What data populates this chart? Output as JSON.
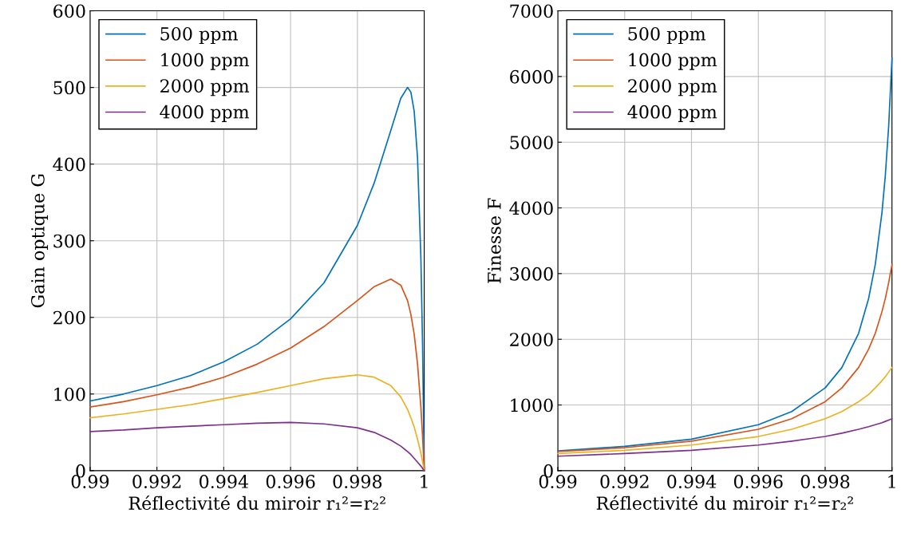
{
  "chart_data": [
    {
      "type": "line",
      "ylabel": "Gain optique G",
      "xlabel": "Réflectivité du miroir r₁²=r₂²",
      "xlim": [
        0.99,
        1
      ],
      "ylim": [
        0,
        600
      ],
      "xticks": [
        0.99,
        0.992,
        0.994,
        0.996,
        0.998,
        1
      ],
      "yticks": [
        0,
        100,
        200,
        300,
        400,
        500,
        600
      ],
      "grid": true,
      "legend": "top left",
      "x": [
        0.99,
        0.991,
        0.992,
        0.993,
        0.994,
        0.995,
        0.996,
        0.997,
        0.998,
        0.9985,
        0.999,
        0.9993,
        0.9995,
        0.9996,
        0.9997,
        0.9998,
        0.9999,
        0.99995,
        1
      ],
      "series": [
        {
          "name": "500 ppm",
          "color": "#0072bd",
          "values": [
            91,
            100,
            111,
            124,
            142,
            165,
            198,
            245,
            320,
            375,
            444,
            486,
            500,
            494,
            469,
            408,
            278,
            165,
            0
          ]
        },
        {
          "name": "1000 ppm",
          "color": "#d95319",
          "values": [
            83,
            90,
            99,
            109,
            122,
            139,
            160,
            188,
            222,
            240,
            250,
            242,
            222,
            204,
            178,
            139,
            83,
            45,
            0
          ]
        },
        {
          "name": "2000 ppm",
          "color": "#edb120",
          "values": [
            69,
            74,
            80,
            86,
            94,
            102,
            111,
            120,
            125,
            122,
            111,
            96,
            80,
            69,
            57,
            41,
            23,
            12,
            0
          ]
        },
        {
          "name": "4000 ppm",
          "color": "#7e2f8e",
          "values": [
            51,
            53,
            56,
            58,
            60,
            62,
            63,
            61,
            56,
            50,
            40,
            32,
            25,
            21,
            16,
            11,
            6,
            3,
            0
          ]
        }
      ]
    },
    {
      "type": "line",
      "ylabel": "Finesse F",
      "xlabel": "Réflectivité du miroir r₁²=r₂²",
      "xlim": [
        0.99,
        1
      ],
      "ylim": [
        0,
        7000
      ],
      "xticks": [
        0.99,
        0.992,
        0.994,
        0.996,
        0.998,
        1
      ],
      "yticks": [
        0,
        1000,
        2000,
        3000,
        4000,
        5000,
        6000,
        7000
      ],
      "grid": true,
      "legend": "top left",
      "x": [
        0.99,
        0.992,
        0.994,
        0.996,
        0.997,
        0.998,
        0.9985,
        0.999,
        0.9993,
        0.9995,
        0.9997,
        0.9998,
        0.9999,
        1
      ],
      "series": [
        {
          "name": "500 ppm",
          "color": "#0072bd",
          "values": [
            300,
            370,
            480,
            700,
            900,
            1260,
            1570,
            2090,
            2620,
            3140,
            3930,
            4490,
            5240,
            6280
          ]
        },
        {
          "name": "1000 ppm",
          "color": "#d95319",
          "values": [
            290,
            350,
            450,
            630,
            790,
            1050,
            1260,
            1570,
            1850,
            2090,
            2420,
            2620,
            2860,
            3140
          ]
        },
        {
          "name": "2000 ppm",
          "color": "#edb120",
          "values": [
            260,
            310,
            390,
            520,
            630,
            790,
            900,
            1050,
            1160,
            1260,
            1370,
            1430,
            1500,
            1570
          ]
        },
        {
          "name": "4000 ppm",
          "color": "#7e2f8e",
          "values": [
            220,
            260,
            310,
            390,
            450,
            520,
            570,
            630,
            670,
            700,
            730,
            750,
            770,
            790
          ]
        }
      ]
    }
  ]
}
